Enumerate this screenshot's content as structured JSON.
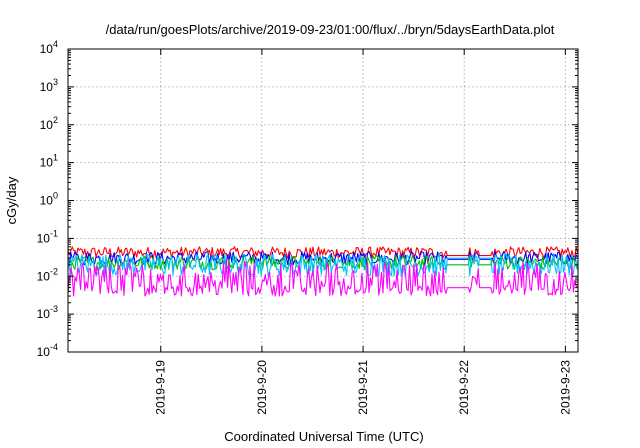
{
  "chart_data": {
    "type": "line",
    "title": "/data/run/goesPlots/archive/2019-09-23/01:00/flux/../bryn/5daysEarthData.plot",
    "xlabel": "Coordinated Universal Time (UTC)",
    "ylabel": "cGy/day",
    "yscale": "log",
    "ylim": [
      0.0001,
      10000
    ],
    "xlim": [
      "2019-09-18T02:00",
      "2019-09-23T03:00"
    ],
    "grid": true,
    "y_ticks": [
      {
        "base": "10",
        "exp": "-4",
        "value": 0.0001
      },
      {
        "base": "10",
        "exp": "-3",
        "value": 0.001
      },
      {
        "base": "10",
        "exp": "-2",
        "value": 0.01
      },
      {
        "base": "10",
        "exp": "-1",
        "value": 0.1
      },
      {
        "base": "10",
        "exp": "0",
        "value": 1
      },
      {
        "base": "10",
        "exp": "1",
        "value": 10
      },
      {
        "base": "10",
        "exp": "2",
        "value": 100
      },
      {
        "base": "10",
        "exp": "3",
        "value": 1000
      },
      {
        "base": "10",
        "exp": "4",
        "value": 10000
      }
    ],
    "x_ticks": [
      {
        "label": "2019-9-19",
        "value": "2019-09-19T00:00"
      },
      {
        "label": "2019-9-20",
        "value": "2019-09-20T00:00"
      },
      {
        "label": "2019-9-21",
        "value": "2019-09-21T00:00"
      },
      {
        "label": "2019-9-22",
        "value": "2019-09-22T00:00"
      },
      {
        "label": "2019-9-23",
        "value": "2019-09-23T00:00"
      }
    ],
    "data_gaps": [
      [
        "2019-09-21T20:00",
        "2019-09-22T01:00"
      ],
      [
        "2019-09-22T03:30",
        "2019-09-22T06:30"
      ]
    ],
    "series": [
      {
        "color": "#ff0000",
        "range": [
          0.03,
          0.06
        ],
        "baseline": 0.035
      },
      {
        "color": "#0000ff",
        "range": [
          0.02,
          0.045
        ],
        "baseline": 0.028
      },
      {
        "color": "#00c000",
        "range": [
          0.015,
          0.035
        ],
        "baseline": 0.02
      },
      {
        "color": "#00c0ff",
        "range": [
          0.01,
          0.04
        ],
        "baseline": 0.03
      },
      {
        "color": "#ff00ff",
        "range": [
          0.003,
          0.025
        ],
        "baseline": 0.005
      }
    ]
  }
}
